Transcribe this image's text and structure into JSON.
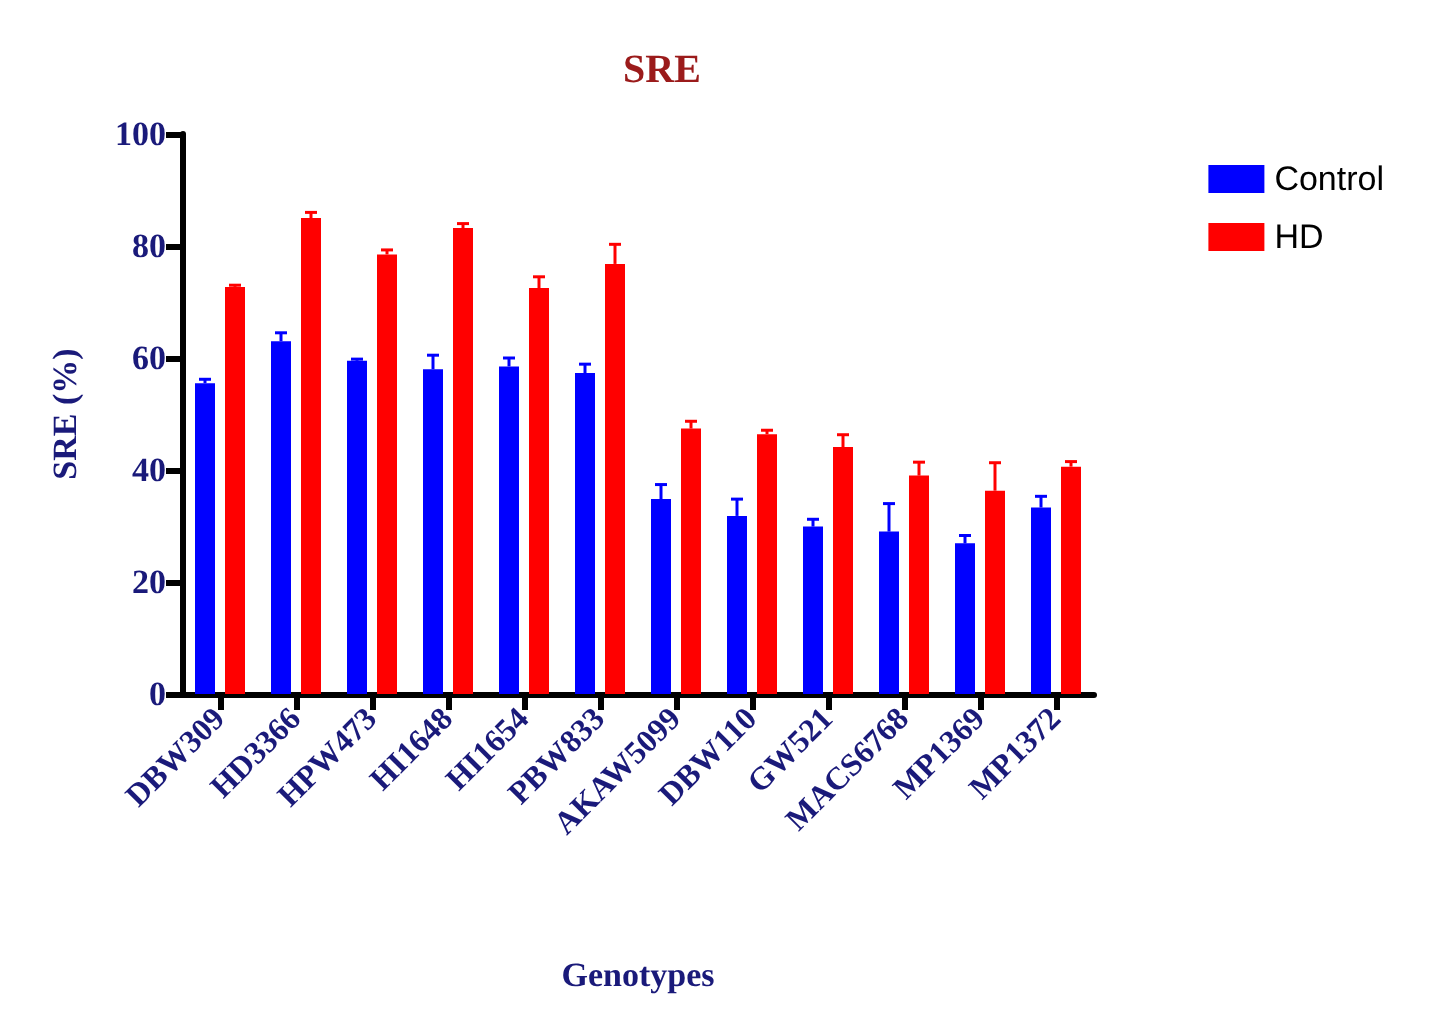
{
  "chart_data": {
    "type": "bar",
    "title": "SRE",
    "xlabel": "Genotypes",
    "ylabel": "SRE (%)",
    "categories": [
      "DBW309",
      "HD3366",
      "HPW473",
      "HI1648",
      "HI1654",
      "PBW833",
      "AKAW5099",
      "DBW110",
      "GW521",
      "MACS6768",
      "MP1369",
      "MP1372"
    ],
    "series": [
      {
        "name": "Control",
        "color": "#0000ff",
        "values": [
          55.5,
          63,
          59.5,
          58,
          58.5,
          57.3,
          34.8,
          31.8,
          29.9,
          29,
          26.9,
          33.3
        ],
        "errors": [
          [
            55.5,
            56.2
          ],
          [
            63,
            64.5
          ],
          [
            59.5,
            59.8
          ],
          [
            58,
            60.5
          ],
          [
            58.5,
            60
          ],
          [
            57.3,
            58.9
          ],
          [
            34.8,
            37.4
          ],
          [
            31.8,
            34.8
          ],
          [
            29.9,
            31.2
          ],
          [
            29,
            34
          ],
          [
            26.9,
            28.3
          ],
          [
            33.3,
            35.3
          ]
        ]
      },
      {
        "name": "HD",
        "color": "#ff0000",
        "values": [
          72.7,
          85,
          78.5,
          83.2,
          72.5,
          76.8,
          47.4,
          46.4,
          44.1,
          39,
          36.3,
          40.6
        ],
        "errors": [
          [
            72.7,
            73
          ],
          [
            85,
            86
          ],
          [
            78.5,
            79.3
          ],
          [
            83.2,
            84
          ],
          [
            72.5,
            74.5
          ],
          [
            76.8,
            80.3
          ],
          [
            47.4,
            48.7
          ],
          [
            46.4,
            47.1
          ],
          [
            44.1,
            46.3
          ],
          [
            39,
            41.4
          ],
          [
            36.3,
            41.3
          ],
          [
            40.6,
            41.5
          ]
        ]
      }
    ],
    "ylim": [
      0,
      100
    ],
    "yticks": [
      0,
      20,
      40,
      60,
      80,
      100
    ],
    "grid": false,
    "legend": "top right"
  }
}
